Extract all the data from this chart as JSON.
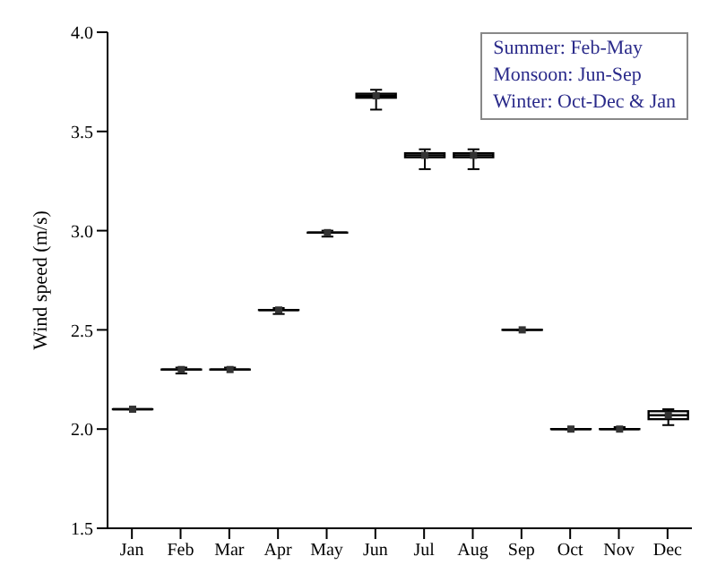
{
  "chart_data": {
    "type": "box",
    "ylabel": "Wind speed (m/s)",
    "categories": [
      "Jan",
      "Feb",
      "Mar",
      "Apr",
      "May",
      "Jun",
      "Jul",
      "Aug",
      "Sep",
      "Oct",
      "Nov",
      "Dec"
    ],
    "boxes": [
      {
        "low": 2.1,
        "q1": 2.1,
        "median": 2.1,
        "q3": 2.1,
        "high": 2.1,
        "mean": 2.1
      },
      {
        "low": 2.28,
        "q1": 2.3,
        "median": 2.3,
        "q3": 2.3,
        "high": 2.31,
        "mean": 2.3
      },
      {
        "low": 2.3,
        "q1": 2.3,
        "median": 2.3,
        "q3": 2.3,
        "high": 2.31,
        "mean": 2.3
      },
      {
        "low": 2.58,
        "q1": 2.6,
        "median": 2.6,
        "q3": 2.6,
        "high": 2.61,
        "mean": 2.6
      },
      {
        "low": 2.97,
        "q1": 2.99,
        "median": 2.99,
        "q3": 2.99,
        "high": 3.0,
        "mean": 2.99
      },
      {
        "low": 3.61,
        "q1": 3.67,
        "median": 3.68,
        "q3": 3.69,
        "high": 3.71,
        "mean": 3.68
      },
      {
        "low": 3.31,
        "q1": 3.37,
        "median": 3.38,
        "q3": 3.39,
        "high": 3.41,
        "mean": 3.38
      },
      {
        "low": 3.31,
        "q1": 3.37,
        "median": 3.38,
        "q3": 3.39,
        "high": 3.41,
        "mean": 3.38
      },
      {
        "low": 2.5,
        "q1": 2.5,
        "median": 2.5,
        "q3": 2.5,
        "high": 2.5,
        "mean": 2.5
      },
      {
        "low": 2.0,
        "q1": 2.0,
        "median": 2.0,
        "q3": 2.0,
        "high": 2.0,
        "mean": 2.0
      },
      {
        "low": 2.0,
        "q1": 2.0,
        "median": 2.0,
        "q3": 2.0,
        "high": 2.01,
        "mean": 2.0
      },
      {
        "low": 2.02,
        "q1": 2.05,
        "median": 2.07,
        "q3": 2.09,
        "high": 2.1,
        "mean": 2.07
      }
    ],
    "color": "#000000",
    "ylim": [
      1.5,
      4.0
    ],
    "yticks": [
      {
        "value": 1.5,
        "label": "1.5"
      },
      {
        "value": 2.0,
        "label": "2.0"
      },
      {
        "value": 2.5,
        "label": "2.5"
      },
      {
        "value": 3.0,
        "label": "3.0"
      },
      {
        "value": 3.5,
        "label": "3.5"
      },
      {
        "value": 4.0,
        "label": "4.0"
      }
    ],
    "grid": false,
    "annotations": [
      "Summer: Feb-May",
      "Monsoon: Jun-Sep",
      "Winter: Oct-Dec & Jan"
    ]
  }
}
